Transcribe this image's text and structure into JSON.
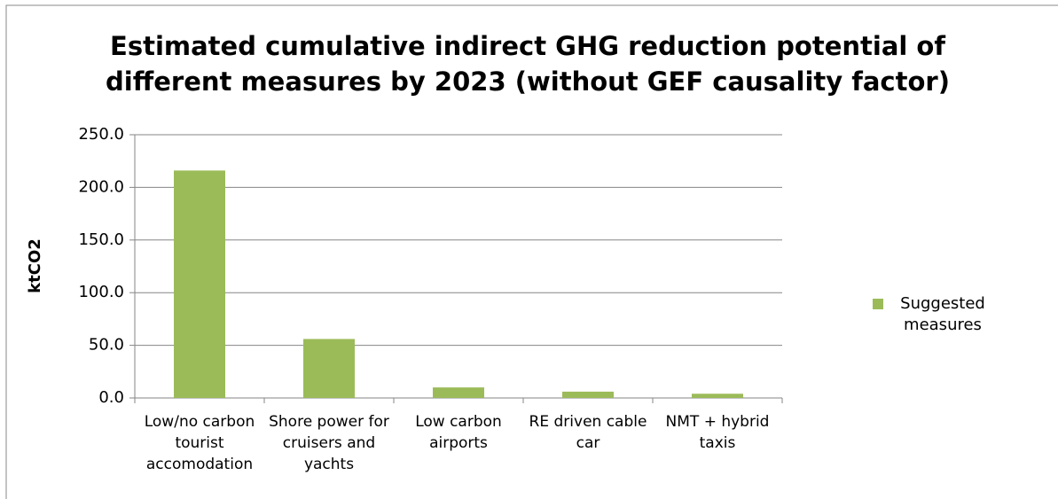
{
  "chart_data": {
    "type": "bar",
    "title": "Estimated cumulative indirect GHG reduction potential of different measures by 2023 (without GEF causality factor)",
    "y_label": "ktCO2",
    "categories": [
      "Low/no carbon tourist accomodation",
      "Shore power for cruisers and yachts",
      "Low carbon airports",
      "RE driven cable car",
      "NMT + hybrid taxis"
    ],
    "series": [
      {
        "name": "Suggested measures",
        "color": "#9bbb59",
        "values": [
          216,
          56,
          10,
          6,
          4
        ]
      }
    ],
    "ylim": [
      0,
      250
    ],
    "yticks": [
      {
        "value": 0,
        "label": "0.0"
      },
      {
        "value": 50,
        "label": "50.0"
      },
      {
        "value": 100,
        "label": "100.0"
      },
      {
        "value": 150,
        "label": "150.0"
      },
      {
        "value": 200,
        "label": "200.0"
      },
      {
        "value": 250,
        "label": "250.0"
      }
    ],
    "grid": true,
    "legend": "right"
  }
}
